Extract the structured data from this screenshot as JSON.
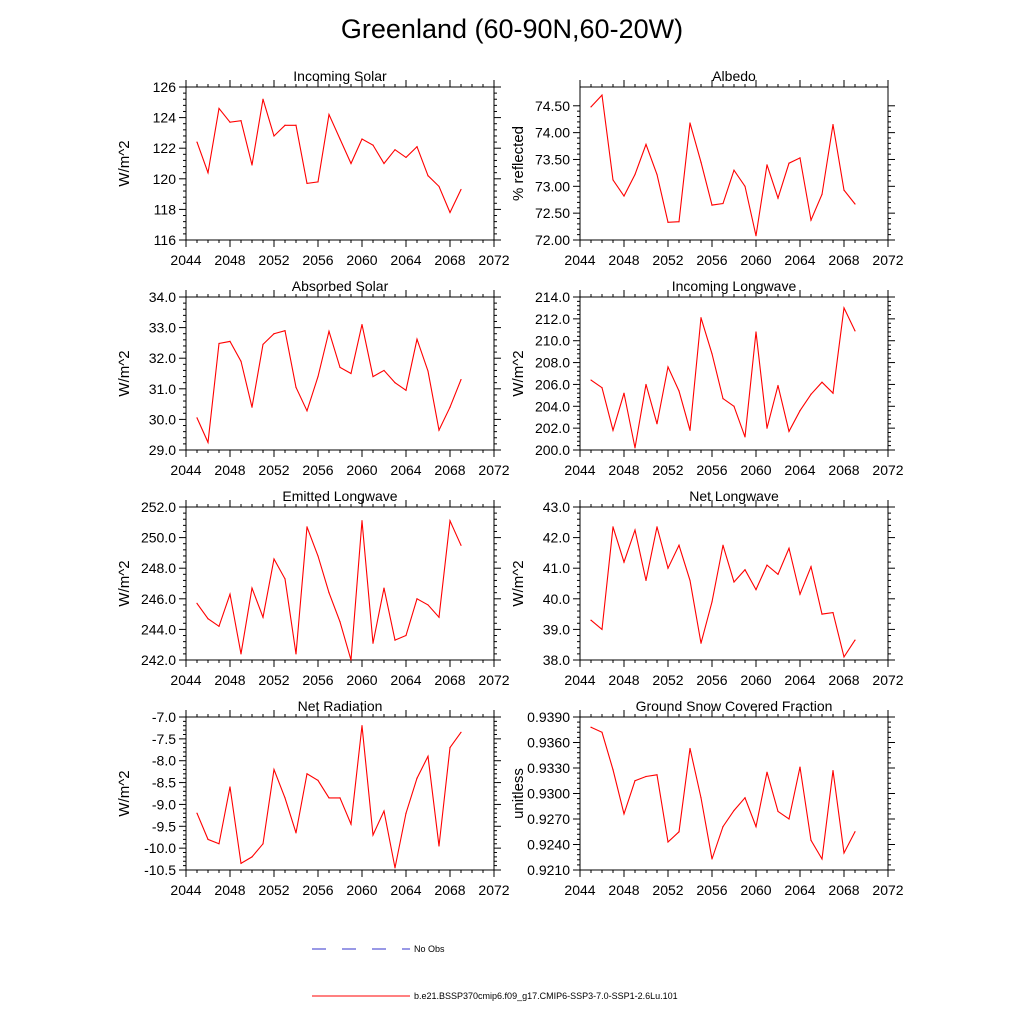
{
  "title": "Greenland (60-90N,60-20W)",
  "colors": {
    "series": "#ff0000",
    "obs": "#3333cc",
    "axis": "#000000"
  },
  "legend": {
    "obs_label": "No Obs",
    "model_label": "b.e21.BSSP370cmip6.f09_g17.CMIP6-SSP3-7.0-SSP1-2.6Lu.101"
  },
  "chart_data": [
    {
      "type": "line",
      "title": "Incoming Solar",
      "ylabel": "W/m^2",
      "xlim": [
        2044,
        2072
      ],
      "ylim": [
        116,
        126
      ],
      "yticks": [
        116,
        118,
        120,
        122,
        124,
        126
      ],
      "ytick_labels": [
        "116",
        "118",
        "120",
        "122",
        "124",
        "126"
      ],
      "xticks": [
        2044,
        2048,
        2052,
        2056,
        2060,
        2064,
        2068,
        2072
      ],
      "xtick_labels": [
        "2044",
        "2048",
        "2052",
        "2056",
        "2060",
        "2064",
        "2068",
        "2072"
      ],
      "x": [
        2045,
        2046,
        2047,
        2048,
        2049,
        2050,
        2051,
        2052,
        2053,
        2054,
        2055,
        2056,
        2057,
        2058,
        2059,
        2060,
        2061,
        2062,
        2063,
        2064,
        2065,
        2066,
        2067,
        2068,
        2069
      ],
      "values": [
        122.4,
        120.4,
        124.6,
        123.7,
        123.8,
        120.9,
        125.2,
        122.8,
        123.5,
        123.5,
        119.7,
        119.8,
        124.2,
        122.6,
        121.0,
        122.6,
        122.2,
        121.0,
        121.9,
        121.4,
        122.1,
        120.2,
        119.5,
        117.8,
        119.3
      ]
    },
    {
      "type": "line",
      "title": "Albedo",
      "ylabel": "% reflected",
      "xlim": [
        2044,
        2072
      ],
      "ylim": [
        72.0,
        74.85
      ],
      "yticks": [
        72.0,
        72.5,
        73.0,
        73.5,
        74.0,
        74.5
      ],
      "ytick_labels": [
        "72.00",
        "72.50",
        "73.00",
        "73.50",
        "74.00",
        "74.50"
      ],
      "xticks": [
        2044,
        2048,
        2052,
        2056,
        2060,
        2064,
        2068,
        2072
      ],
      "xtick_labels": [
        "2044",
        "2048",
        "2052",
        "2056",
        "2060",
        "2064",
        "2068",
        "2072"
      ],
      "x": [
        2045,
        2046,
        2047,
        2048,
        2049,
        2050,
        2051,
        2052,
        2053,
        2054,
        2055,
        2056,
        2057,
        2058,
        2059,
        2060,
        2061,
        2062,
        2063,
        2064,
        2065,
        2066,
        2067,
        2068,
        2069
      ],
      "values": [
        74.48,
        74.7,
        73.12,
        72.82,
        73.22,
        73.78,
        73.22,
        72.33,
        72.34,
        74.18,
        73.45,
        72.65,
        72.68,
        73.3,
        73.0,
        72.08,
        73.4,
        72.78,
        73.43,
        73.53,
        72.37,
        72.85,
        74.15,
        72.93,
        72.67
      ]
    },
    {
      "type": "line",
      "title": "Absorbed Solar",
      "ylabel": "W/m^2",
      "xlim": [
        2044,
        2072
      ],
      "ylim": [
        29.0,
        34.0
      ],
      "yticks": [
        29.0,
        30.0,
        31.0,
        32.0,
        33.0,
        34.0
      ],
      "ytick_labels": [
        "29.0",
        "30.0",
        "31.0",
        "32.0",
        "33.0",
        "34.0"
      ],
      "xticks": [
        2044,
        2048,
        2052,
        2056,
        2060,
        2064,
        2068,
        2072
      ],
      "xtick_labels": [
        "2044",
        "2048",
        "2052",
        "2056",
        "2060",
        "2064",
        "2068",
        "2072"
      ],
      "x": [
        2045,
        2046,
        2047,
        2048,
        2049,
        2050,
        2051,
        2052,
        2053,
        2054,
        2055,
        2056,
        2057,
        2058,
        2059,
        2060,
        2061,
        2062,
        2063,
        2064,
        2065,
        2066,
        2067,
        2068,
        2069
      ],
      "values": [
        30.05,
        29.25,
        32.48,
        32.55,
        31.9,
        30.4,
        32.45,
        32.8,
        32.9,
        31.05,
        30.28,
        31.4,
        32.88,
        31.7,
        31.5,
        33.1,
        31.4,
        31.6,
        31.2,
        30.95,
        32.62,
        31.58,
        29.65,
        30.4,
        31.3
      ]
    },
    {
      "type": "line",
      "title": "Incoming Longwave",
      "ylabel": "W/m^2",
      "xlim": [
        2044,
        2072
      ],
      "ylim": [
        200.0,
        214.0
      ],
      "yticks": [
        200,
        202,
        204,
        206,
        208,
        210,
        212,
        214
      ],
      "ytick_labels": [
        "200.0",
        "202.0",
        "204.0",
        "206.0",
        "208.0",
        "210.0",
        "212.0",
        "214.0"
      ],
      "xticks": [
        2044,
        2048,
        2052,
        2056,
        2060,
        2064,
        2068,
        2072
      ],
      "xtick_labels": [
        "2044",
        "2048",
        "2052",
        "2056",
        "2060",
        "2064",
        "2068",
        "2072"
      ],
      "x": [
        2045,
        2046,
        2047,
        2048,
        2049,
        2050,
        2051,
        2052,
        2053,
        2054,
        2055,
        2056,
        2057,
        2058,
        2059,
        2060,
        2061,
        2062,
        2063,
        2064,
        2065,
        2066,
        2067,
        2068,
        2069
      ],
      "values": [
        206.4,
        205.7,
        201.8,
        205.2,
        200.2,
        206.0,
        202.4,
        207.6,
        205.4,
        201.8,
        212.1,
        208.8,
        204.7,
        204.0,
        201.2,
        210.8,
        202.0,
        205.9,
        201.7,
        203.6,
        205.1,
        206.2,
        205.2,
        213.0,
        210.9
      ]
    },
    {
      "type": "line",
      "title": "Emitted Longwave",
      "ylabel": "W/m^2",
      "xlim": [
        2044,
        2072
      ],
      "ylim": [
        242.0,
        252.0
      ],
      "yticks": [
        242,
        244,
        246,
        248,
        250,
        252
      ],
      "ytick_labels": [
        "242.0",
        "244.0",
        "246.0",
        "248.0",
        "250.0",
        "252.0"
      ],
      "xticks": [
        2044,
        2048,
        2052,
        2056,
        2060,
        2064,
        2068,
        2072
      ],
      "xtick_labels": [
        "2044",
        "2048",
        "2052",
        "2056",
        "2060",
        "2064",
        "2068",
        "2072"
      ],
      "x": [
        2045,
        2046,
        2047,
        2048,
        2049,
        2050,
        2051,
        2052,
        2053,
        2054,
        2055,
        2056,
        2057,
        2058,
        2059,
        2060,
        2061,
        2062,
        2063,
        2064,
        2065,
        2066,
        2067,
        2068,
        2069
      ],
      "values": [
        245.7,
        244.7,
        244.2,
        246.3,
        242.4,
        246.7,
        244.8,
        248.6,
        247.3,
        242.4,
        250.7,
        248.8,
        246.4,
        244.5,
        242.0,
        251.1,
        243.1,
        246.7,
        243.3,
        243.6,
        246.0,
        245.6,
        244.8,
        251.1,
        249.5
      ]
    },
    {
      "type": "line",
      "title": "Net Longwave",
      "ylabel": "W/m^2",
      "xlim": [
        2044,
        2072
      ],
      "ylim": [
        38.0,
        43.0
      ],
      "yticks": [
        38,
        39,
        40,
        41,
        42,
        43
      ],
      "ytick_labels": [
        "38.0",
        "39.0",
        "40.0",
        "41.0",
        "42.0",
        "43.0"
      ],
      "xticks": [
        2044,
        2048,
        2052,
        2056,
        2060,
        2064,
        2068,
        2072
      ],
      "xtick_labels": [
        "2044",
        "2048",
        "2052",
        "2056",
        "2060",
        "2064",
        "2068",
        "2072"
      ],
      "x": [
        2045,
        2046,
        2047,
        2048,
        2049,
        2050,
        2051,
        2052,
        2053,
        2054,
        2055,
        2056,
        2057,
        2058,
        2059,
        2060,
        2061,
        2062,
        2063,
        2064,
        2065,
        2066,
        2067,
        2068,
        2069
      ],
      "values": [
        39.3,
        39.0,
        42.35,
        41.2,
        42.25,
        40.6,
        42.35,
        41.0,
        41.75,
        40.6,
        38.55,
        39.9,
        41.75,
        40.55,
        40.95,
        40.3,
        41.1,
        40.8,
        41.65,
        40.15,
        41.05,
        39.5,
        39.55,
        38.1,
        38.65
      ]
    },
    {
      "type": "line",
      "title": "Net Radiation",
      "ylabel": "W/m^2",
      "xlim": [
        2044,
        2072
      ],
      "ylim": [
        -10.5,
        -7.0
      ],
      "yticks": [
        -10.5,
        -10.0,
        -9.5,
        -9.0,
        -8.5,
        -8.0,
        -7.5,
        -7.0
      ],
      "ytick_labels": [
        "-10.5",
        "-10.0",
        "-9.5",
        "-9.0",
        "-8.5",
        "-8.0",
        "-7.5",
        "-7.0"
      ],
      "xticks": [
        2044,
        2048,
        2052,
        2056,
        2060,
        2064,
        2068,
        2072
      ],
      "xtick_labels": [
        "2044",
        "2048",
        "2052",
        "2056",
        "2060",
        "2064",
        "2068",
        "2072"
      ],
      "x": [
        2045,
        2046,
        2047,
        2048,
        2049,
        2050,
        2051,
        2052,
        2053,
        2054,
        2055,
        2056,
        2057,
        2058,
        2059,
        2060,
        2061,
        2062,
        2063,
        2064,
        2065,
        2066,
        2067,
        2068,
        2069
      ],
      "values": [
        -9.2,
        -9.8,
        -9.9,
        -8.6,
        -10.35,
        -10.2,
        -9.9,
        -8.2,
        -8.85,
        -9.65,
        -8.3,
        -8.45,
        -8.85,
        -8.85,
        -9.45,
        -7.2,
        -9.7,
        -9.15,
        -10.45,
        -9.2,
        -8.4,
        -7.9,
        -9.95,
        -7.7,
        -7.35
      ]
    },
    {
      "type": "line",
      "title": "Ground Snow Covered Fraction",
      "ylabel": "unitless",
      "xlim": [
        2044,
        2072
      ],
      "ylim": [
        0.921,
        0.939
      ],
      "yticks": [
        0.921,
        0.924,
        0.927,
        0.93,
        0.933,
        0.936,
        0.939
      ],
      "ytick_labels": [
        "0.9210",
        "0.9240",
        "0.9270",
        "0.9300",
        "0.9330",
        "0.9360",
        "0.9390"
      ],
      "xticks": [
        2044,
        2048,
        2052,
        2056,
        2060,
        2064,
        2068,
        2072
      ],
      "xtick_labels": [
        "2044",
        "2048",
        "2052",
        "2056",
        "2060",
        "2064",
        "2068",
        "2072"
      ],
      "x": [
        2045,
        2046,
        2047,
        2048,
        2049,
        2050,
        2051,
        2052,
        2053,
        2054,
        2055,
        2056,
        2057,
        2058,
        2059,
        2060,
        2061,
        2062,
        2063,
        2064,
        2065,
        2066,
        2067,
        2068,
        2069
      ],
      "values": [
        0.9378,
        0.9372,
        0.9328,
        0.9276,
        0.9315,
        0.932,
        0.9322,
        0.9243,
        0.9255,
        0.9353,
        0.9295,
        0.9223,
        0.9261,
        0.928,
        0.9295,
        0.9261,
        0.9325,
        0.9279,
        0.927,
        0.9331,
        0.9245,
        0.9223,
        0.9327,
        0.923,
        0.9255
      ]
    }
  ]
}
